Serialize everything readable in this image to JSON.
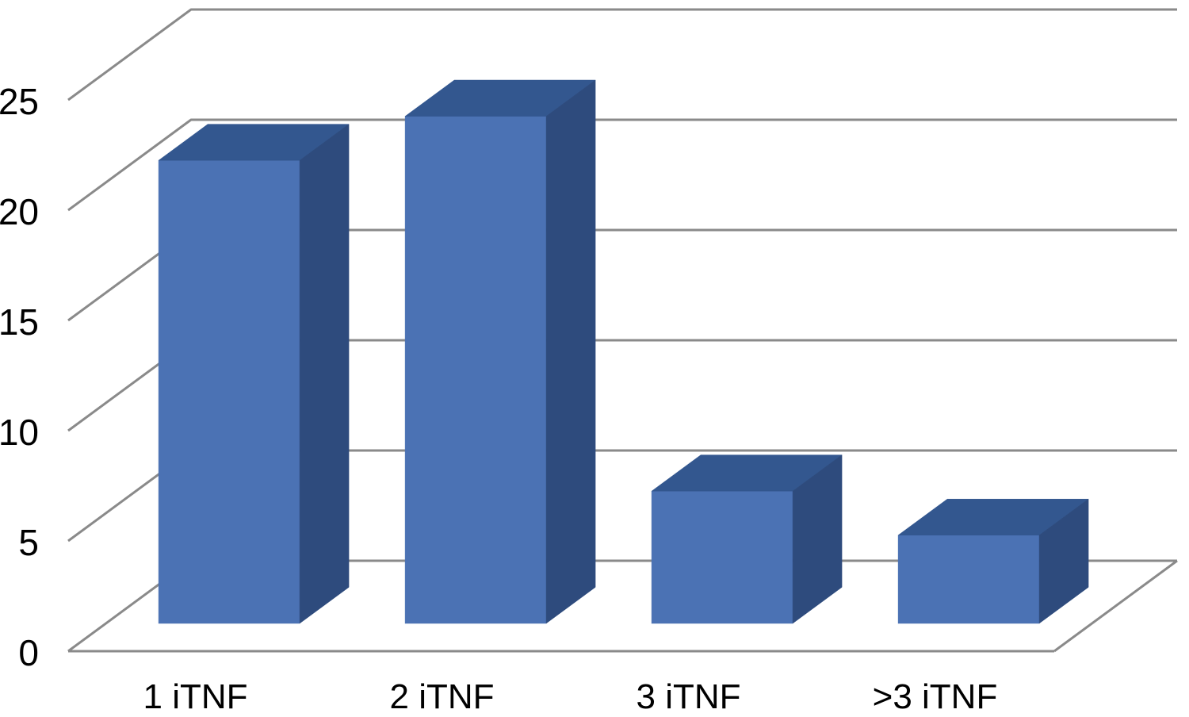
{
  "chart_data": {
    "type": "bar",
    "variant": "3d-column",
    "title": "",
    "xlabel": "",
    "ylabel": "",
    "categories": [
      "1 iTNF",
      "2 iTNF",
      "3 iTNF",
      ">3 iTNF"
    ],
    "series": [
      {
        "name": "",
        "values": [
          21,
          23,
          6,
          4
        ]
      }
    ],
    "values": [
      21,
      23,
      6,
      4
    ],
    "yticks": [
      0,
      5,
      10,
      15,
      20,
      25
    ],
    "ylim": [
      0,
      25
    ],
    "grid": true,
    "legend": false,
    "background": "#ffffff",
    "colors": {
      "bar_front": "#4b72b4",
      "bar_top": "#33578f",
      "bar_side": "#2e4b7d",
      "gridline": "#8a8a8a",
      "label_text": "#000000"
    }
  }
}
